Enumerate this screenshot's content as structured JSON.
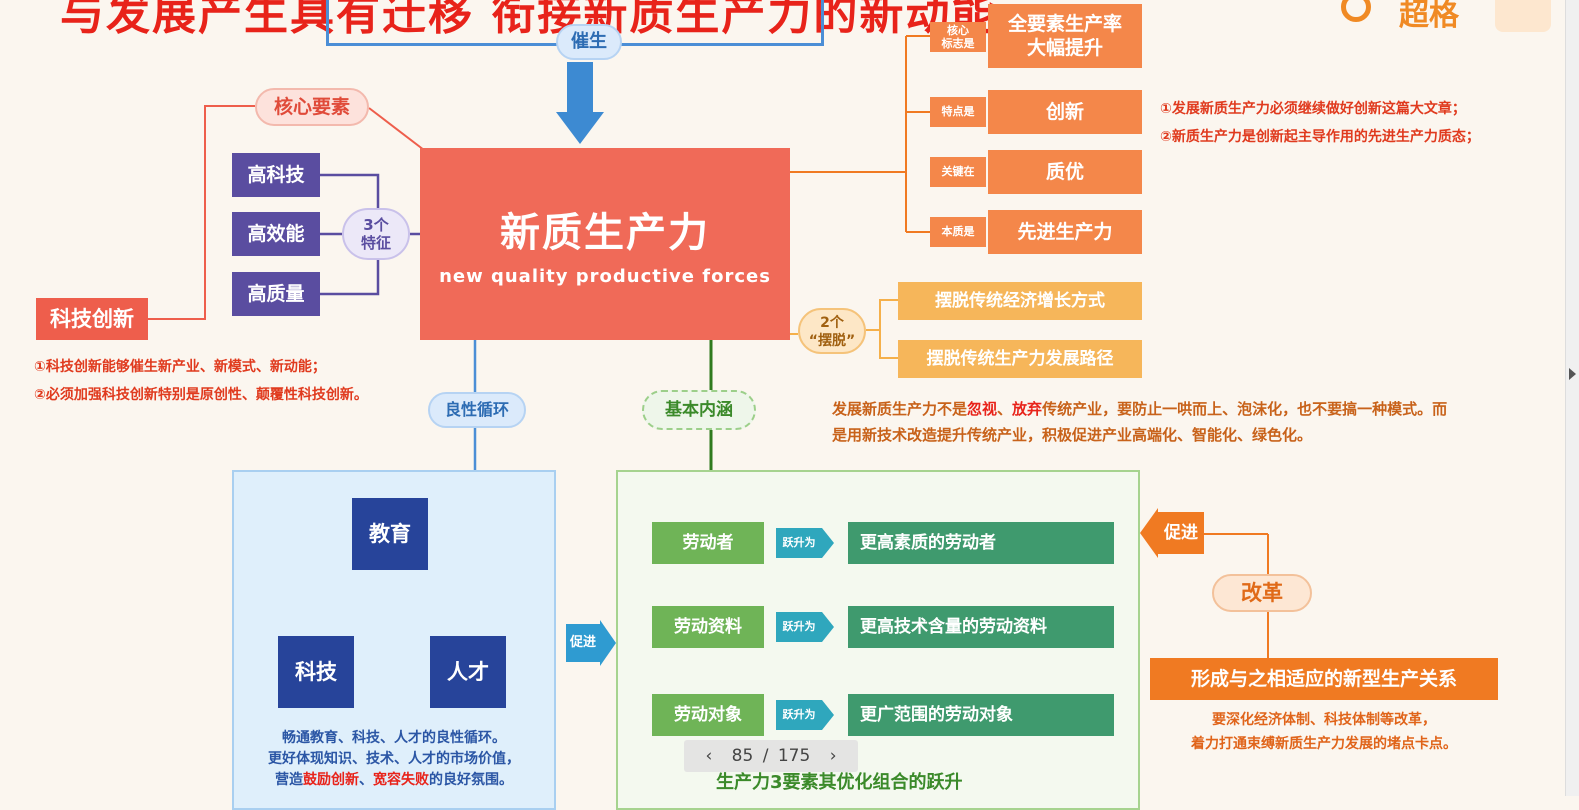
{
  "header": {
    "title": "与发展产生具有迁移 衔接新质生产力的新动能",
    "brand": "超格"
  },
  "diagram": {
    "catalyze_label": "催生",
    "core_title_zh": "新质生产力",
    "core_title_en": "new quality productive forces",
    "core_element_label": "核心要素",
    "features_label": "3个\n特征",
    "features": [
      "高科技",
      "高效能",
      "高质量"
    ],
    "tech_innovation": "科技创新",
    "tech_notes": [
      "①科技创新能够催生新产业、新模式、新动能；",
      "②必须加强科技创新特别是原创性、颠覆性科技创新。"
    ],
    "right_items": [
      {
        "tag": "核心\n标志是",
        "text": "全要素生产率\n大幅提升"
      },
      {
        "tag": "特点是",
        "text": "创新"
      },
      {
        "tag": "关键在",
        "text": "质优"
      },
      {
        "tag": "本质是",
        "text": "先进生产力"
      }
    ],
    "innovation_notes": [
      "①发展新质生产力必须继续做好创新这篇大文章；",
      "②新质生产力是创新起主导作用的先进生产力质态；"
    ],
    "baituo_label": "2个\n“摆脱”",
    "baituo_items": [
      "摆脱传统经济增长方式",
      "摆脱传统生产力发展路径"
    ],
    "dev_note_parts": [
      "发展新质生产力不是",
      "忽视",
      "、",
      "放弃",
      "传统产业，要防止一哄而上、泡沫化，也不要搞一种模式。而是用新技术改造提升传统产业，积极促进产业高端化、智能化、绿色化。"
    ],
    "virtuous_cycle_label": "良性循环",
    "basic_connotation_label": "基本内涵",
    "cycle_nodes": {
      "education": "教育",
      "tech": "科技",
      "talent": "人才"
    },
    "cycle_text_lines": [
      "畅通教育、科技、人才的良性循环。",
      "更好体现知识、技术、人才的市场价值，"
    ],
    "cycle_text_last": [
      "营造",
      "鼓励创新",
      "、",
      "宽容失败",
      "的良好氛围。"
    ],
    "promote_label": "促进",
    "leap_label": "跃升为",
    "elements": [
      {
        "from": "劳动者",
        "to": "更高素质的劳动者"
      },
      {
        "from": "劳动资料",
        "to": "更高技术含量的劳动资料"
      },
      {
        "from": "劳动对象",
        "to": "更广范围的劳动对象"
      }
    ],
    "bottom_caption": "生产力3要素其优化组合的跃升",
    "reform_label": "改革",
    "reform_promote": "促进",
    "new_relations": "形成与之相适应的新型生产关系",
    "reform_notes": [
      "要深化经济体制、科技体制等改革，",
      "着力打通束缚新质生产力发展的堵点卡点。"
    ]
  },
  "pager": {
    "current": "85",
    "total": "175",
    "separator": "/"
  },
  "colors": {
    "core": "#f06a58",
    "feature": "#5a4da0",
    "orange": "#f4874a",
    "green": "#3f9a6e",
    "blue": "#27449a"
  }
}
